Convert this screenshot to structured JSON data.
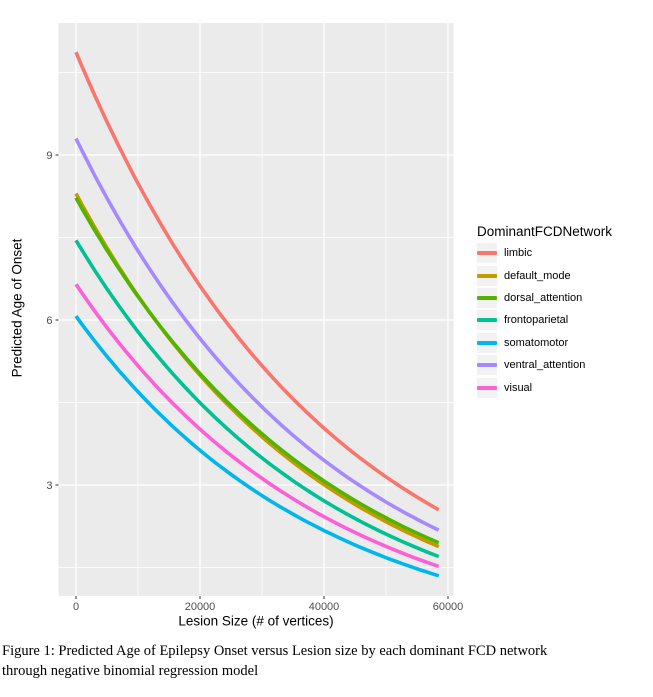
{
  "figure": {
    "caption_line1": "Figure 1: Predicted Age of Epilepsy Onset versus Lesion size by each dominant FCD network",
    "caption_line2": "through negative binomial regression model"
  },
  "chart_data": {
    "type": "line",
    "title": "",
    "xlabel": "Lesion Size (# of vertices)",
    "ylabel": "Predicted Age of Onset",
    "legend_title": "DominantFCDNetwork",
    "legend_position": "right",
    "panel_bg": "#EBEBEB",
    "grid_color": "#FFFFFF",
    "legend_key_bg": "#F2F2F2",
    "tick_label_color": "#4D4D4D",
    "tick_mark_color": "#333333",
    "xlim": [
      -2800,
      60800
    ],
    "ylim": [
      1.0,
      11.4
    ],
    "xticks": [
      0,
      20000,
      40000,
      60000
    ],
    "xtick_labels": [
      "0",
      "20000",
      "40000",
      "60000"
    ],
    "yticks": [
      3,
      6,
      9
    ],
    "ytick_labels": [
      "3",
      "6",
      "9"
    ],
    "x_minor_ticks": [
      10000,
      30000,
      50000
    ],
    "y_minor_ticks": [
      1.5,
      4.5,
      7.5,
      10.5
    ],
    "grid": true,
    "model": "exponential decay y = y_start * exp(ln(y_end/y_start) * x / x_max), negative binomial regression predictions",
    "x_max": 58500,
    "series": [
      {
        "name": "limbic",
        "color": "#F8766D",
        "y_start": 10.87,
        "y_end": 2.55
      },
      {
        "name": "default_mode",
        "color": "#C49A00",
        "y_start": 8.3,
        "y_end": 1.88
      },
      {
        "name": "dorsal_attention",
        "color": "#53B400",
        "y_start": 8.22,
        "y_end": 1.95
      },
      {
        "name": "frontoparietal",
        "color": "#00C094",
        "y_start": 7.45,
        "y_end": 1.7
      },
      {
        "name": "somatomotor",
        "color": "#00B6EB",
        "y_start": 6.07,
        "y_end": 1.35
      },
      {
        "name": "ventral_attention",
        "color": "#A58AFF",
        "y_start": 9.3,
        "y_end": 2.18
      },
      {
        "name": "visual",
        "color": "#FB61D7",
        "y_start": 6.65,
        "y_end": 1.52
      }
    ]
  }
}
